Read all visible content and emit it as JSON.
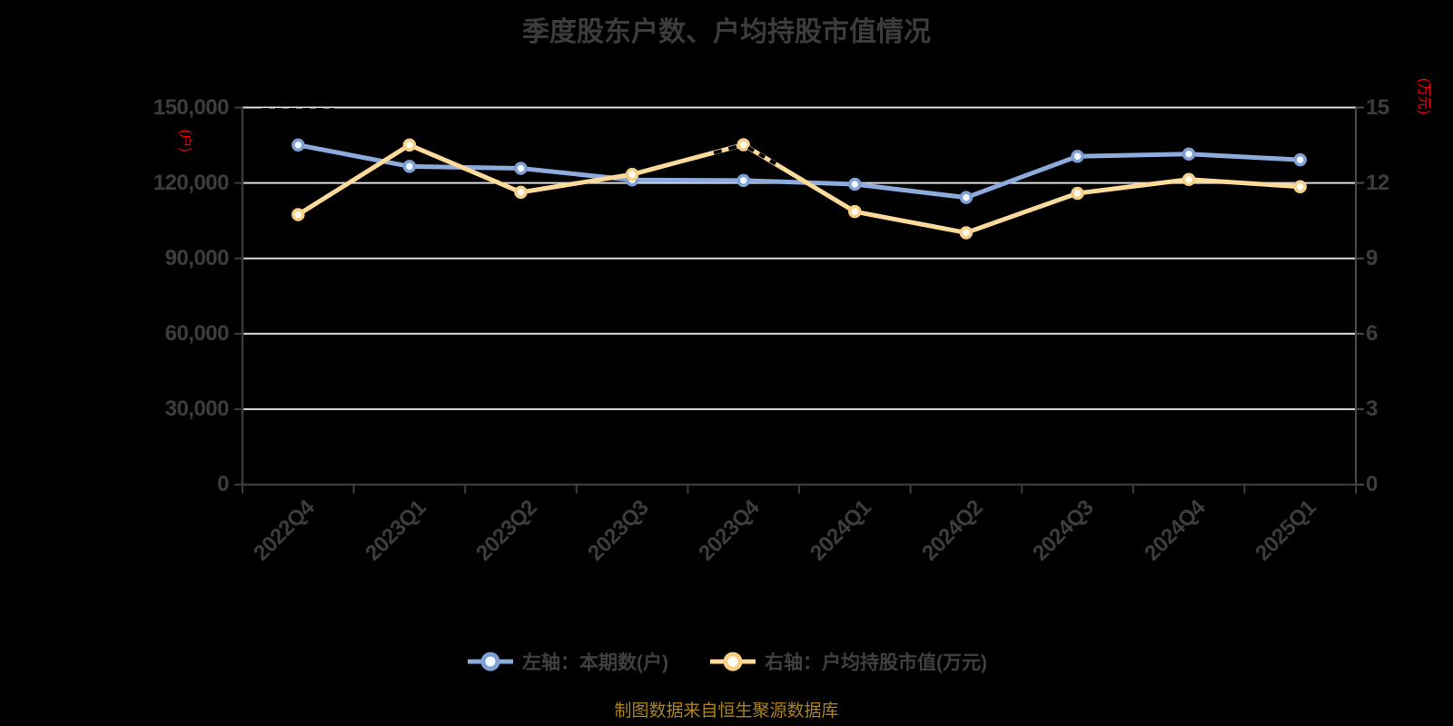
{
  "source_note": "制图数据来自恒生聚源数据库",
  "colors": {
    "background": "#000000",
    "grid_line": "#dedede",
    "axis_line": "#3b3b3b",
    "right_axis_line": "#4a4a4a",
    "text": "#3d3d3d",
    "axis_name_red": "#ff0000",
    "source_gold": "#aa831d",
    "series_blue": "#8dabdc",
    "series_yellow": "#fbda9a"
  },
  "chart_data": {
    "type": "line",
    "title": "季度股东户数、户均持股市值情况",
    "categories": [
      "2022Q4",
      "2023Q1",
      "2023Q2",
      "2023Q3",
      "2023Q4",
      "2024Q1",
      "2024Q2",
      "2024Q3",
      "2024Q4",
      "2025Q1"
    ],
    "series": [
      {
        "name": "左轴：本期数(户)",
        "short_name": "本期数(户)",
        "axis": "left",
        "color": "#8dabdc",
        "marker_border": "#7fa0d4",
        "marker_fill": "#f2f6fd",
        "values": [
          135100,
          126600,
          125800,
          121200,
          121000,
          119500,
          114200,
          130600,
          131500,
          129200
        ]
      },
      {
        "name": "右轴：户均持股市值(万元)",
        "short_name": "户均持股市值(万元)",
        "axis": "right",
        "color": "#fbda9a",
        "marker_border": "#f7cf86",
        "marker_fill": "#fffdf4",
        "values": [
          10.74,
          13.51,
          11.63,
          12.34,
          13.52,
          10.86,
          10.02,
          11.59,
          12.14,
          11.85
        ]
      }
    ],
    "left_axis": {
      "name": "(户)",
      "min": 0,
      "max": 150000,
      "tick_labels": [
        "0",
        "30,000",
        "60,000",
        "90,000",
        "120,000",
        "150,000"
      ]
    },
    "right_axis": {
      "name": "(万元)",
      "min": 0,
      "max": 15,
      "tick_labels": [
        "0",
        "3",
        "6",
        "9",
        "12",
        "15"
      ]
    },
    "grid": true,
    "legend_position": "bottom"
  }
}
